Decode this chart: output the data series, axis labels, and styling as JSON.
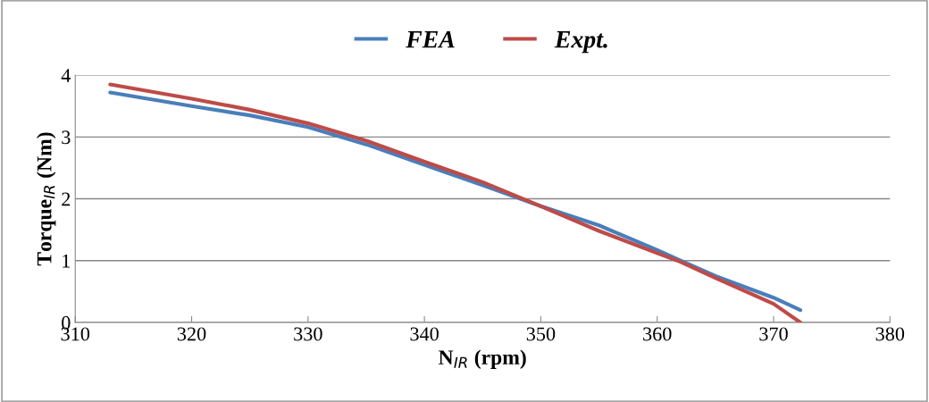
{
  "chart_data": {
    "type": "line",
    "xlabel": "N$_{IR}$ (rpm)",
    "ylabel": "Torque$_{IR}$ (Nm)",
    "xlim": [
      310,
      380
    ],
    "xticks": [
      310,
      320,
      330,
      340,
      350,
      360,
      370,
      380
    ],
    "ylim": [
      0,
      4
    ],
    "yticks": [
      0,
      1,
      2,
      3,
      4
    ],
    "grid": "y",
    "legend": "top",
    "marker": "none",
    "line_style": "solid",
    "series": [
      {
        "name": "FEA",
        "color": "#4a7ebb",
        "x": [
          313,
          320,
          325,
          330,
          335,
          340,
          345,
          350,
          355,
          360,
          362,
          365,
          370,
          372.3
        ],
        "values": [
          3.72,
          3.5,
          3.35,
          3.16,
          2.88,
          2.55,
          2.22,
          1.88,
          1.57,
          1.17,
          1.0,
          0.75,
          0.4,
          0.2
        ]
      },
      {
        "name": "Expt.",
        "color": "#be4b48",
        "x": [
          313,
          320,
          325,
          330,
          335,
          340,
          345,
          350,
          355,
          360,
          362,
          365,
          370,
          372.3
        ],
        "values": [
          3.85,
          3.62,
          3.44,
          3.22,
          2.94,
          2.6,
          2.27,
          1.88,
          1.48,
          1.12,
          0.98,
          0.72,
          0.3,
          0.0
        ]
      }
    ]
  }
}
